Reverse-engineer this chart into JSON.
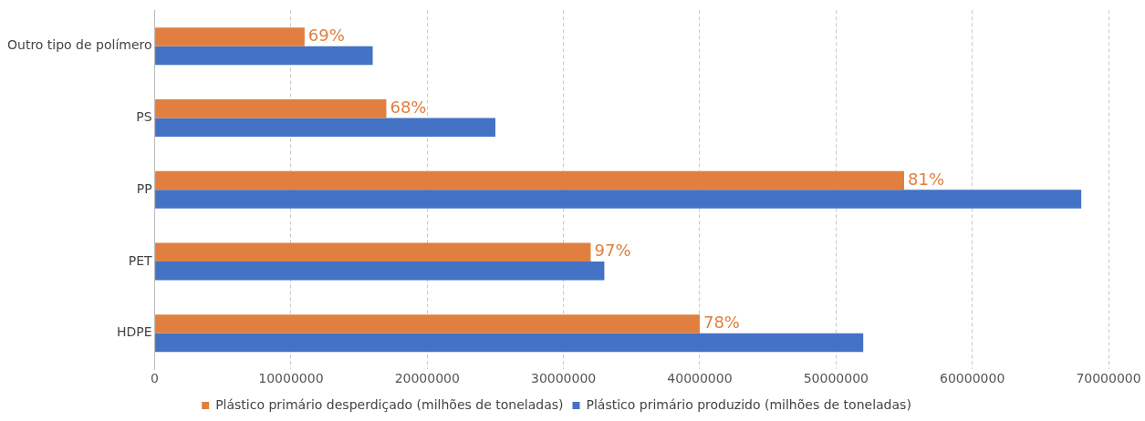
{
  "chart_data": {
    "type": "bar",
    "orientation": "horizontal",
    "categories": [
      "Outro tipo de polímero",
      "PS",
      "PP",
      "PET",
      "HDPE"
    ],
    "series": [
      {
        "name": "Plástico primário desperdiçado (milhões de toneladas)",
        "color": "#e07f3f",
        "values": [
          11000000,
          17000000,
          55000000,
          32000000,
          40000000
        ]
      },
      {
        "name": "Plástico primário produzido (milhões de toneladas)",
        "color": "#4472c4",
        "values": [
          16000000,
          25000000,
          68000000,
          33000000,
          52000000
        ]
      }
    ],
    "annotations": [
      {
        "text": "69%",
        "x": 11000000,
        "y": "Outro tipo de polímero"
      },
      {
        "text": "68%",
        "x": 17000000,
        "y": "PS"
      },
      {
        "text": "81%",
        "x": 55000000,
        "y": "PP"
      },
      {
        "text": "97%",
        "x": 32000000,
        "y": "PET"
      },
      {
        "text": "78%",
        "x": 40000000,
        "y": "HDPE"
      }
    ],
    "xlim": [
      0,
      70000000
    ],
    "xticks": [
      0,
      10000000,
      20000000,
      30000000,
      40000000,
      50000000,
      60000000,
      70000000
    ],
    "grid": "x",
    "legend": "bottom"
  }
}
